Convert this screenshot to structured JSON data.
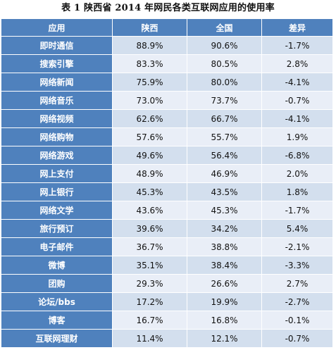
{
  "title": "表 1 陕西省 2014 年网民各类互联网应用的使用率",
  "columns": [
    "应用",
    "陕西",
    "全国",
    "差异"
  ],
  "colors": {
    "header_bg": "#4f81bd",
    "row_odd_bg": "#d3dfee",
    "row_even_bg": "#e9eef7"
  },
  "rows": [
    {
      "app": "即时通信",
      "shaanxi": "88.9%",
      "national": "90.6%",
      "diff": "-1.7%"
    },
    {
      "app": "搜索引擎",
      "shaanxi": "83.3%",
      "national": "80.5%",
      "diff": "2.8%"
    },
    {
      "app": "网络新闻",
      "shaanxi": "75.9%",
      "national": "80.0%",
      "diff": "-4.1%"
    },
    {
      "app": "网络音乐",
      "shaanxi": "73.0%",
      "national": "73.7%",
      "diff": "-0.7%"
    },
    {
      "app": "网络视频",
      "shaanxi": "62.6%",
      "national": "66.7%",
      "diff": "-4.1%"
    },
    {
      "app": "网络购物",
      "shaanxi": "57.6%",
      "national": "55.7%",
      "diff": "1.9%"
    },
    {
      "app": "网络游戏",
      "shaanxi": "49.6%",
      "national": "56.4%",
      "diff": "-6.8%"
    },
    {
      "app": "网上支付",
      "shaanxi": "48.9%",
      "national": "46.9%",
      "diff": "2.0%"
    },
    {
      "app": "网上银行",
      "shaanxi": "45.3%",
      "national": "43.5%",
      "diff": "1.8%"
    },
    {
      "app": "网络文学",
      "shaanxi": "43.6%",
      "national": "45.3%",
      "diff": "-1.7%"
    },
    {
      "app": "旅行预订",
      "shaanxi": "39.6%",
      "national": "34.2%",
      "diff": "5.4%"
    },
    {
      "app": "电子邮件",
      "shaanxi": "36.7%",
      "national": "38.8%",
      "diff": "-2.1%"
    },
    {
      "app": "微博",
      "shaanxi": "35.1%",
      "national": "38.4%",
      "diff": "-3.3%"
    },
    {
      "app": "团购",
      "shaanxi": "29.3%",
      "national": "26.6%",
      "diff": "2.7%"
    },
    {
      "app": "论坛/bbs",
      "shaanxi": "17.2%",
      "national": "19.9%",
      "diff": "-2.7%"
    },
    {
      "app": "博客",
      "shaanxi": "16.7%",
      "national": "16.8%",
      "diff": "-0.1%"
    },
    {
      "app": "互联网理财",
      "shaanxi": "11.4%",
      "national": "12.1%",
      "diff": "-0.7%"
    }
  ]
}
